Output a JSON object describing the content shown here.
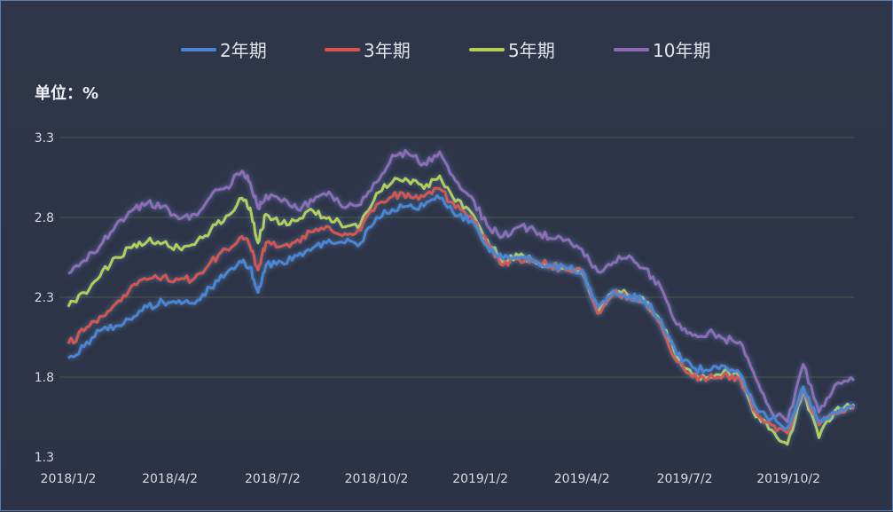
{
  "chart_data": {
    "type": "line",
    "unit_label": "单位：%",
    "ylim": [
      1.3,
      3.3
    ],
    "yticks": [
      "3.3",
      "2.8",
      "2.3",
      "1.8",
      "1.3"
    ],
    "xticks": [
      "2018/1/2",
      "2018/4/2",
      "2018/7/2",
      "2018/10/2",
      "2019/1/2",
      "2019/4/2",
      "2019/7/2",
      "2019/10/2"
    ],
    "x_range": [
      "2018/1/2",
      "2019/11/29"
    ],
    "grid": true,
    "legend_position": "top",
    "series": [
      {
        "name": "2年期",
        "color": "#4a86d4",
        "points": [
          [
            "2018/1/2",
            1.92
          ],
          [
            "2018/1/16",
            1.99
          ],
          [
            "2018/1/30",
            2.09
          ],
          [
            "2018/2/13",
            2.12
          ],
          [
            "2018/2/27",
            2.16
          ],
          [
            "2018/3/13",
            2.24
          ],
          [
            "2018/3/27",
            2.27
          ],
          [
            "2018/4/10",
            2.28
          ],
          [
            "2018/4/24",
            2.26
          ],
          [
            "2018/5/8",
            2.36
          ],
          [
            "2018/5/22",
            2.45
          ],
          [
            "2018/6/5",
            2.52
          ],
          [
            "2018/6/12",
            2.49
          ],
          [
            "2018/6/19",
            2.33
          ],
          [
            "2018/6/26",
            2.5
          ],
          [
            "2018/7/10",
            2.52
          ],
          [
            "2018/7/24",
            2.56
          ],
          [
            "2018/8/7",
            2.61
          ],
          [
            "2018/8/21",
            2.66
          ],
          [
            "2018/9/4",
            2.64
          ],
          [
            "2018/9/18",
            2.64
          ],
          [
            "2018/10/2",
            2.8
          ],
          [
            "2018/10/16",
            2.85
          ],
          [
            "2018/10/30",
            2.87
          ],
          [
            "2018/11/13",
            2.87
          ],
          [
            "2018/11/27",
            2.92
          ],
          [
            "2018/12/11",
            2.81
          ],
          [
            "2018/12/25",
            2.78
          ],
          [
            "2019/1/8",
            2.62
          ],
          [
            "2019/1/22",
            2.54
          ],
          [
            "2019/2/5",
            2.55
          ],
          [
            "2019/2/19",
            2.53
          ],
          [
            "2019/3/5",
            2.5
          ],
          [
            "2019/3/19",
            2.48
          ],
          [
            "2019/4/2",
            2.47
          ],
          [
            "2019/4/16",
            2.24
          ],
          [
            "2019/4/30",
            2.34
          ],
          [
            "2019/5/14",
            2.31
          ],
          [
            "2019/5/28",
            2.28
          ],
          [
            "2019/6/11",
            2.16
          ],
          [
            "2019/6/25",
            1.94
          ],
          [
            "2019/7/9",
            1.86
          ],
          [
            "2019/7/23",
            1.84
          ],
          [
            "2019/8/6",
            1.87
          ],
          [
            "2019/8/20",
            1.82
          ],
          [
            "2019/9/3",
            1.61
          ],
          [
            "2019/9/17",
            1.54
          ],
          [
            "2019/10/1",
            1.48
          ],
          [
            "2019/10/15",
            1.74
          ],
          [
            "2019/10/29",
            1.52
          ],
          [
            "2019/11/12",
            1.58
          ],
          [
            "2019/11/29",
            1.62
          ]
        ]
      },
      {
        "name": "3年期",
        "color": "#d9554a",
        "points": [
          [
            "2018/1/2",
            2.01
          ],
          [
            "2018/1/16",
            2.09
          ],
          [
            "2018/1/30",
            2.18
          ],
          [
            "2018/2/13",
            2.26
          ],
          [
            "2018/2/27",
            2.37
          ],
          [
            "2018/3/13",
            2.41
          ],
          [
            "2018/3/27",
            2.43
          ],
          [
            "2018/4/10",
            2.41
          ],
          [
            "2018/4/24",
            2.42
          ],
          [
            "2018/5/8",
            2.52
          ],
          [
            "2018/5/22",
            2.6
          ],
          [
            "2018/6/5",
            2.68
          ],
          [
            "2018/6/12",
            2.62
          ],
          [
            "2018/6/19",
            2.47
          ],
          [
            "2018/6/26",
            2.64
          ],
          [
            "2018/7/10",
            2.62
          ],
          [
            "2018/7/24",
            2.66
          ],
          [
            "2018/8/7",
            2.71
          ],
          [
            "2018/8/21",
            2.74
          ],
          [
            "2018/9/4",
            2.7
          ],
          [
            "2018/9/18",
            2.72
          ],
          [
            "2018/10/2",
            2.88
          ],
          [
            "2018/10/16",
            2.93
          ],
          [
            "2018/10/30",
            2.95
          ],
          [
            "2018/11/13",
            2.93
          ],
          [
            "2018/11/27",
            2.98
          ],
          [
            "2018/12/11",
            2.86
          ],
          [
            "2018/12/25",
            2.81
          ],
          [
            "2019/1/8",
            2.64
          ],
          [
            "2019/1/22",
            2.5
          ],
          [
            "2019/2/5",
            2.54
          ],
          [
            "2019/2/19",
            2.52
          ],
          [
            "2019/3/5",
            2.5
          ],
          [
            "2019/3/19",
            2.47
          ],
          [
            "2019/4/2",
            2.46
          ],
          [
            "2019/4/16",
            2.2
          ],
          [
            "2019/4/30",
            2.33
          ],
          [
            "2019/5/14",
            2.3
          ],
          [
            "2019/5/28",
            2.27
          ],
          [
            "2019/6/11",
            2.13
          ],
          [
            "2019/6/25",
            1.9
          ],
          [
            "2019/7/9",
            1.8
          ],
          [
            "2019/7/23",
            1.79
          ],
          [
            "2019/8/6",
            1.82
          ],
          [
            "2019/8/20",
            1.79
          ],
          [
            "2019/9/3",
            1.58
          ],
          [
            "2019/9/17",
            1.5
          ],
          [
            "2019/10/1",
            1.45
          ],
          [
            "2019/10/15",
            1.72
          ],
          [
            "2019/10/29",
            1.5
          ],
          [
            "2019/11/12",
            1.57
          ],
          [
            "2019/11/29",
            1.6
          ]
        ]
      },
      {
        "name": "5年期",
        "color": "#b4cf55",
        "points": [
          [
            "2018/1/2",
            2.24
          ],
          [
            "2018/1/16",
            2.33
          ],
          [
            "2018/1/30",
            2.43
          ],
          [
            "2018/2/13",
            2.55
          ],
          [
            "2018/2/27",
            2.61
          ],
          [
            "2018/3/13",
            2.65
          ],
          [
            "2018/3/27",
            2.64
          ],
          [
            "2018/4/10",
            2.61
          ],
          [
            "2018/4/24",
            2.63
          ],
          [
            "2018/5/8",
            2.72
          ],
          [
            "2018/5/22",
            2.81
          ],
          [
            "2018/6/5",
            2.92
          ],
          [
            "2018/6/12",
            2.86
          ],
          [
            "2018/6/19",
            2.64
          ],
          [
            "2018/6/26",
            2.82
          ],
          [
            "2018/7/10",
            2.76
          ],
          [
            "2018/7/24",
            2.78
          ],
          [
            "2018/8/7",
            2.84
          ],
          [
            "2018/8/21",
            2.8
          ],
          [
            "2018/9/4",
            2.74
          ],
          [
            "2018/9/18",
            2.76
          ],
          [
            "2018/10/2",
            2.95
          ],
          [
            "2018/10/16",
            3.02
          ],
          [
            "2018/10/30",
            3.03
          ],
          [
            "2018/11/13",
            2.98
          ],
          [
            "2018/11/27",
            3.06
          ],
          [
            "2018/12/11",
            2.9
          ],
          [
            "2018/12/25",
            2.83
          ],
          [
            "2019/1/8",
            2.66
          ],
          [
            "2019/1/22",
            2.52
          ],
          [
            "2019/2/5",
            2.56
          ],
          [
            "2019/2/19",
            2.52
          ],
          [
            "2019/3/5",
            2.5
          ],
          [
            "2019/3/19",
            2.48
          ],
          [
            "2019/4/2",
            2.45
          ],
          [
            "2019/4/16",
            2.2
          ],
          [
            "2019/4/30",
            2.34
          ],
          [
            "2019/5/14",
            2.31
          ],
          [
            "2019/5/28",
            2.27
          ],
          [
            "2019/6/11",
            2.14
          ],
          [
            "2019/6/25",
            1.93
          ],
          [
            "2019/7/9",
            1.81
          ],
          [
            "2019/7/23",
            1.8
          ],
          [
            "2019/8/6",
            1.84
          ],
          [
            "2019/8/20",
            1.8
          ],
          [
            "2019/9/3",
            1.55
          ],
          [
            "2019/9/17",
            1.47
          ],
          [
            "2019/10/1",
            1.38
          ],
          [
            "2019/10/15",
            1.72
          ],
          [
            "2019/10/29",
            1.42
          ],
          [
            "2019/11/12",
            1.59
          ],
          [
            "2019/11/29",
            1.63
          ]
        ]
      },
      {
        "name": "10年期",
        "color": "#8f6cb5",
        "points": [
          [
            "2018/1/2",
            2.45
          ],
          [
            "2018/1/16",
            2.53
          ],
          [
            "2018/1/30",
            2.62
          ],
          [
            "2018/2/13",
            2.75
          ],
          [
            "2018/2/27",
            2.84
          ],
          [
            "2018/3/13",
            2.89
          ],
          [
            "2018/3/27",
            2.87
          ],
          [
            "2018/4/10",
            2.79
          ],
          [
            "2018/4/24",
            2.82
          ],
          [
            "2018/5/8",
            2.93
          ],
          [
            "2018/5/22",
            2.99
          ],
          [
            "2018/6/5",
            3.09
          ],
          [
            "2018/6/12",
            3.02
          ],
          [
            "2018/6/19",
            2.86
          ],
          [
            "2018/6/26",
            2.94
          ],
          [
            "2018/7/10",
            2.9
          ],
          [
            "2018/7/24",
            2.85
          ],
          [
            "2018/8/7",
            2.9
          ],
          [
            "2018/8/21",
            2.96
          ],
          [
            "2018/9/4",
            2.86
          ],
          [
            "2018/9/18",
            2.88
          ],
          [
            "2018/10/2",
            3.02
          ],
          [
            "2018/10/16",
            3.19
          ],
          [
            "2018/10/30",
            3.2
          ],
          [
            "2018/11/13",
            3.14
          ],
          [
            "2018/11/27",
            3.21
          ],
          [
            "2018/12/11",
            3.03
          ],
          [
            "2018/12/25",
            2.93
          ],
          [
            "2019/1/8",
            2.75
          ],
          [
            "2019/1/22",
            2.68
          ],
          [
            "2019/2/5",
            2.74
          ],
          [
            "2019/2/19",
            2.72
          ],
          [
            "2019/3/5",
            2.67
          ],
          [
            "2019/3/19",
            2.66
          ],
          [
            "2019/4/2",
            2.6
          ],
          [
            "2019/4/16",
            2.46
          ],
          [
            "2019/4/30",
            2.52
          ],
          [
            "2019/5/14",
            2.56
          ],
          [
            "2019/5/28",
            2.48
          ],
          [
            "2019/6/11",
            2.36
          ],
          [
            "2019/6/25",
            2.13
          ],
          [
            "2019/7/9",
            2.06
          ],
          [
            "2019/7/23",
            2.08
          ],
          [
            "2019/8/6",
            2.04
          ],
          [
            "2019/8/20",
            2.02
          ],
          [
            "2019/9/3",
            1.79
          ],
          [
            "2019/9/17",
            1.58
          ],
          [
            "2019/10/1",
            1.52
          ],
          [
            "2019/10/15",
            1.88
          ],
          [
            "2019/10/29",
            1.58
          ],
          [
            "2019/11/12",
            1.75
          ],
          [
            "2019/11/29",
            1.78
          ]
        ]
      }
    ]
  }
}
